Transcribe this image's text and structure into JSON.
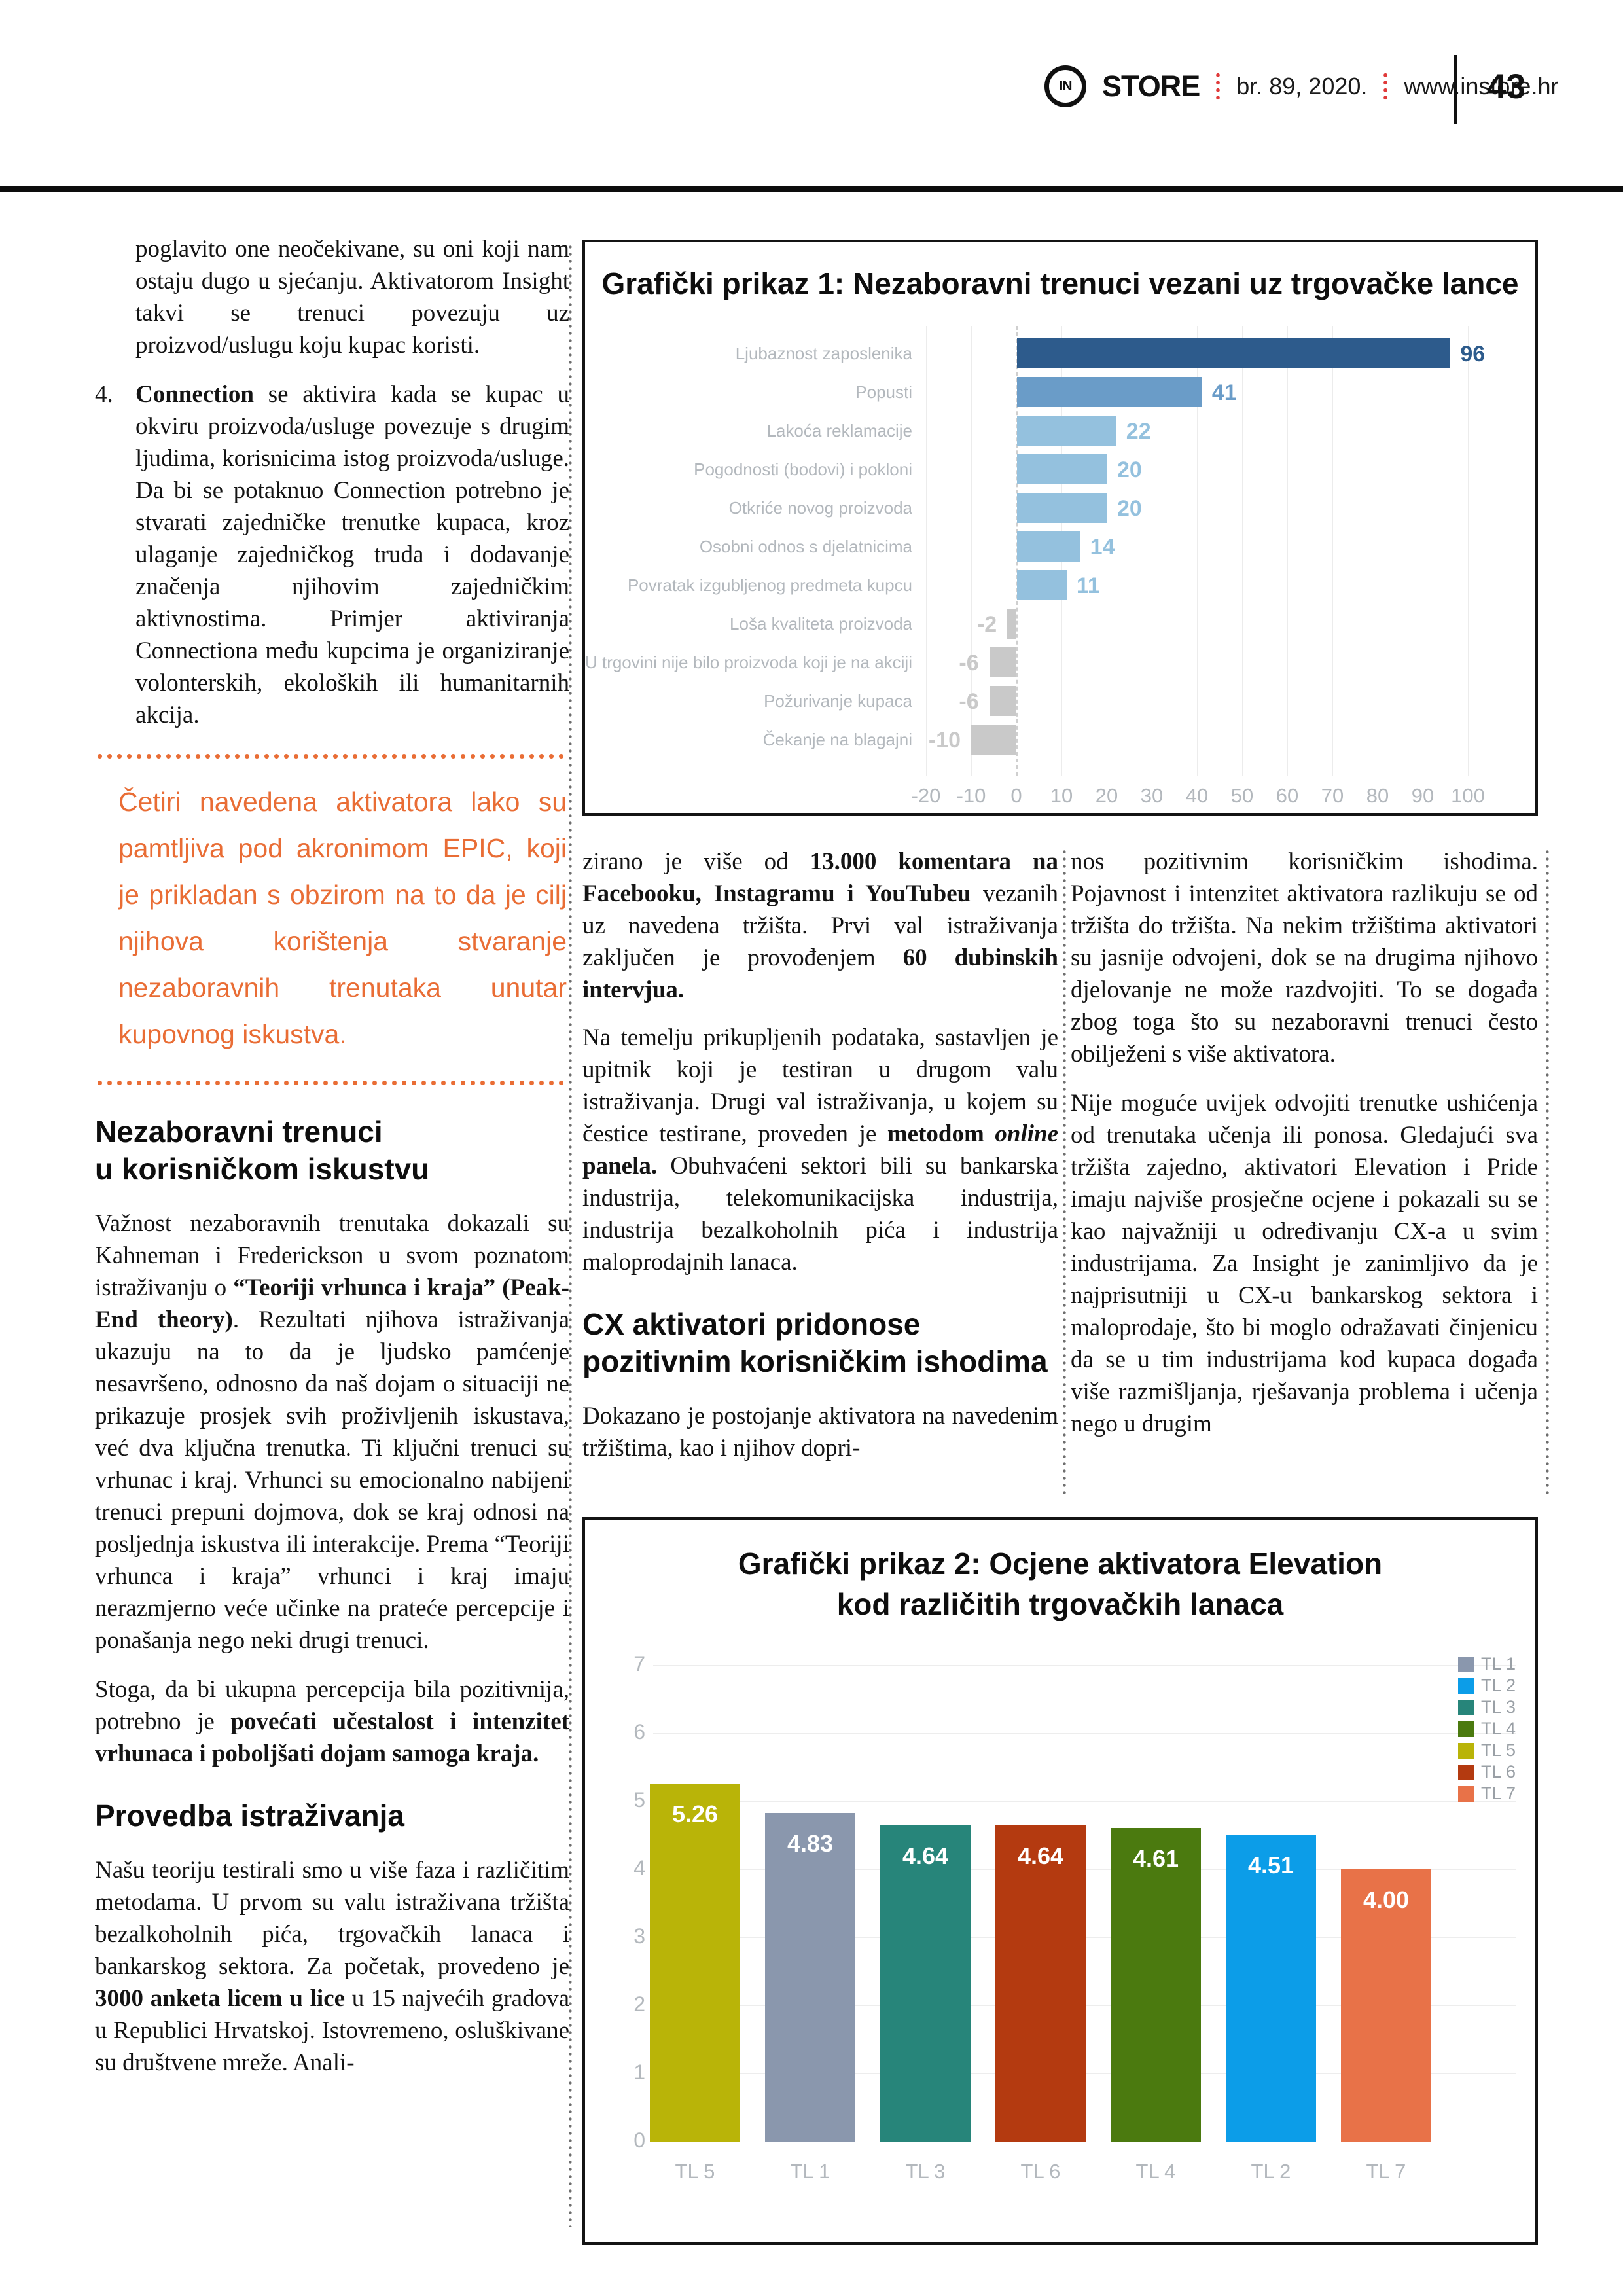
{
  "header": {
    "logo_mark": "IN",
    "brand": "STORE",
    "issue": "br. 89, 2020.",
    "website": "www.instore.hr",
    "page_number": "43"
  },
  "accent_colors": {
    "orange": "#e96d35",
    "header_dot_red": "#e03a3a"
  },
  "column1": {
    "p1_segments": [
      {
        "t": "poglavito one neočekivane, su oni koji nam ostaju dugo u sjećanju. Aktivatorom Insight takvi se trenuci povezuju uz proizvod/uslugu koju kupac koristi."
      }
    ],
    "item4_marker": "4.",
    "item4_segments": [
      {
        "t": "Connection",
        "b": true
      },
      {
        "t": " se aktivira kada se kupac u okviru proizvoda/usluge povezuje s drugim ljudima, korisnicima istog proizvoda/usluge. Da bi se potaknuo Connection potrebno je stvarati zajedničke trenutke kupaca, kroz ulaganje zajedničkog truda i dodavanje značenja njihovim zajedničkim aktivnostima. Primjer aktiviranja Connectiona među kupcima je organiziranje volonterskih, ekoloških ili humanitarnih akcija."
      }
    ],
    "pullquote": "Četiri navedena aktivatora lako su pamtljiva pod akronimom EPIC, koji je prikladan s obzirom na to da je cilj njihova korištenja stvaranje nezaboravnih trenutaka unutar kupovnog iskustva.",
    "heading1_lines": [
      "Nezaboravni trenuci",
      "u korisničkom iskustvu"
    ],
    "p2_segments": [
      {
        "t": "Važnost nezaboravnih trenutaka dokazali su Kahneman i Frederickson u svom poznatom istraživanju o "
      },
      {
        "t": "“Teoriji vrhunca i kraja” (Peak-End theory)",
        "b": true
      },
      {
        "t": ". Rezultati njihova istraživanja ukazuju na to da je ljudsko pamćenje nesavršeno, odnosno da naš dojam o situaciji ne prikazuje prosjek svih proživljenih iskustava, već dva ključna trenutka. Ti ključni trenuci su vrhunac i kraj. Vrhunci su emocionalno nabijeni trenuci prepuni dojmova, dok se kraj odnosi na posljednja iskustva ili interakcije. Prema “Teoriji vrhunca i kraja” vrhunci i kraj imaju nerazmjerno veće učinke na prateće percepcije i ponašanja nego neki drugi trenuci."
      }
    ],
    "p3_segments": [
      {
        "t": "Stoga, da bi ukupna percepcija bila pozitivnija, potrebno je "
      },
      {
        "t": "povećati učestalost i intenzitet vrhunaca i poboljšati dojam samoga kraja.",
        "b": true
      }
    ],
    "heading2_lines": [
      "Provedba istraživanja"
    ],
    "p4_segments": [
      {
        "t": "Našu teoriju testirali smo u više faza i različitim metodama. U prvom su valu istraživana tržišta bezalkoholnih pića, trgovačkih lanaca i bankarskog sektora. Za početak, provedeno je "
      },
      {
        "t": "3000 anketa licem u lice",
        "b": true
      },
      {
        "t": " u 15 najvećih gradova u Republici Hrvatskoj. Istovremeno, osluškivane su društvene mreže. Anali-"
      }
    ]
  },
  "column2": {
    "p1_segments": [
      {
        "t": "zirano je više od "
      },
      {
        "t": "13.000 komentara na Facebooku, Instagramu i YouTubeu",
        "b": true
      },
      {
        "t": " vezanih uz navedena tržišta. Prvi val istraživanja zaključen je provođenjem "
      },
      {
        "t": "60 dubinskih intervjua.",
        "b": true
      }
    ],
    "p2_segments": [
      {
        "t": "Na temelju prikupljenih podataka, sastavljen je upitnik koji je testiran u drugom valu istraživanja. Drugi val istraživanja, u kojem su čestice testirane, proveden je "
      },
      {
        "t": "metodom ",
        "b": true
      },
      {
        "t": "online",
        "b": true,
        "i": true
      },
      {
        "t": " panela.",
        "b": true
      },
      {
        "t": " Obuhvaćeni sektori bili su bankarska industrija, telekomunikacijska industrija, industrija bezalkoholnih pića i industrija maloprodajnih lanaca."
      }
    ],
    "heading_lines": [
      "CX aktivatori pridonose",
      "pozitivnim korisničkim ishodima"
    ],
    "p3_segments": [
      {
        "t": "Dokazano je postojanje aktivatora na navedenim tržištima, kao i njihov dopri-"
      }
    ]
  },
  "column3": {
    "p1_segments": [
      {
        "t": "nos pozitivnim korisničkim ishodima. Pojavnost i intenzitet aktivatora razlikuju se od tržišta do tržišta. Na nekim tržištima aktivatori su jasnije odvojeni, dok se na drugima njihovo djelovanje ne može razdvojiti. To se događa zbog toga što su nezaboravni trenuci često obilježeni s više aktivatora."
      }
    ],
    "p2_segments": [
      {
        "t": "Nije moguće uvijek odvojiti trenutke ushićenja od trenutaka učenja ili ponosa. Gledajući sva tržišta zajedno, aktivatori Elevation i Pride imaju najviše prosječne ocjene i pokazali su se kao najvažniji u određivanju CX-a u svim industrijama. Za Insight je zanimljivo da je najprisutniji u CX-u bankarskog sektora i maloprodaje, što bi moglo odražavati činjenicu da se u tim industrijama kod kupaca događa više razmišljanja, rješavanja problema i učenja nego u drugim"
      }
    ]
  },
  "chart_data": [
    {
      "type": "bar",
      "orientation": "horizontal",
      "title": "Grafički prikaz 1: Nezaboravni trenuci vezani uz trgovačke lance",
      "categories": [
        "Ljubaznost zaposlenika",
        "Popusti",
        "Lakoća reklamacije",
        "Pogodnosti (bodovi) i pokloni",
        "Otkriće novog proizvoda",
        "Osobni odnos s djelatnicima",
        "Povratak izgubljenog predmeta kupcu",
        "Loša kvaliteta proizvoda",
        "U trgovini nije bilo proizvoda koji je na akciji",
        "Požurivanje kupaca",
        "Čekanje na blagajni"
      ],
      "values": [
        96,
        41,
        22,
        20,
        20,
        14,
        11,
        -2,
        -6,
        -6,
        -10
      ],
      "bar_colors": [
        "#2d5b8c",
        "#6a9cc8",
        "#94c1de",
        "#94c1de",
        "#94c1de",
        "#94c1de",
        "#94c1de",
        "#c9c9c9",
        "#c9c9c9",
        "#c9c9c9",
        "#c9c9c9"
      ],
      "xticks": [
        -20,
        -10,
        0,
        10,
        20,
        30,
        40,
        50,
        60,
        70,
        80,
        90,
        100
      ],
      "xlim": [
        -22,
        110
      ],
      "grid": true,
      "value_labels": true,
      "legend_position": "none"
    },
    {
      "type": "bar",
      "orientation": "vertical",
      "title": "Grafički prikaz 2: Ocjene aktivatora Elevation",
      "subtitle": "kod različitih trgovačkih lanaca",
      "categories": [
        "TL 5",
        "TL 1",
        "TL 3",
        "TL 6",
        "TL 4",
        "TL 2",
        "TL 7"
      ],
      "values": [
        5.26,
        4.83,
        4.64,
        4.64,
        4.61,
        4.51,
        4.0
      ],
      "bar_colors": [
        "#b9b408",
        "#8a97ad",
        "#27857a",
        "#b43a10",
        "#4b7a0f",
        "#0c9de8",
        "#e87248"
      ],
      "yticks": [
        0,
        1,
        2,
        3,
        4,
        5,
        6,
        7
      ],
      "ylim": [
        0,
        7
      ],
      "grid": true,
      "value_labels": true,
      "legend_position": "right",
      "legend_entries": [
        {
          "label": "TL 1",
          "color": "#8a97ad"
        },
        {
          "label": "TL 2",
          "color": "#0c9de8"
        },
        {
          "label": "TL 3",
          "color": "#27857a"
        },
        {
          "label": "TL 4",
          "color": "#4b7a0f"
        },
        {
          "label": "TL 5",
          "color": "#b9b408"
        },
        {
          "label": "TL 6",
          "color": "#b43a10"
        },
        {
          "label": "TL 7",
          "color": "#e87248"
        }
      ]
    }
  ]
}
